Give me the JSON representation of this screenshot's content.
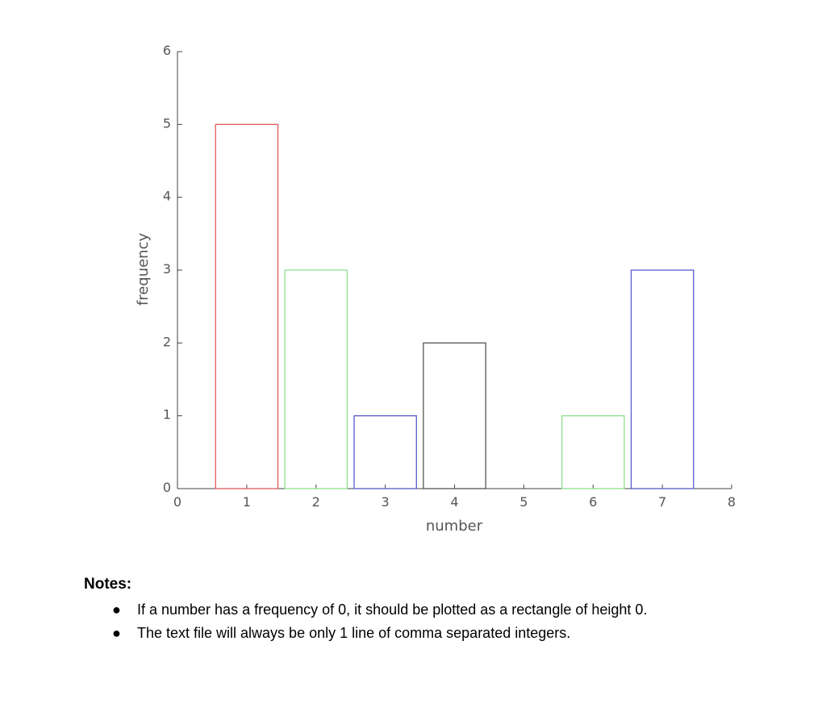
{
  "chart_data": {
    "type": "bar",
    "x": [
      1,
      2,
      3,
      4,
      5,
      6,
      7
    ],
    "values": [
      5,
      3,
      1,
      2,
      0,
      1,
      3
    ],
    "xlabel": "number",
    "ylabel": "frequency",
    "xlim": [
      0,
      8
    ],
    "ylim": [
      0,
      6
    ],
    "xticks": [
      0,
      1,
      2,
      3,
      4,
      5,
      6,
      7,
      8
    ],
    "yticks": [
      0,
      1,
      2,
      3,
      4,
      5,
      6
    ],
    "bar_colors": [
      "#e05a5a",
      "#8fe08f",
      "#5a5ad0",
      "#555555",
      "#e05a5a",
      "#8fe08f",
      "#5a5ad0"
    ],
    "fill": "none",
    "grid": false,
    "legend": "none"
  },
  "notes": {
    "title": "Notes:",
    "items": [
      "If a number has a frequency of 0, it should be plotted as a rectangle of height 0.",
      "The text file will always be only 1 line of comma separated integers."
    ]
  }
}
